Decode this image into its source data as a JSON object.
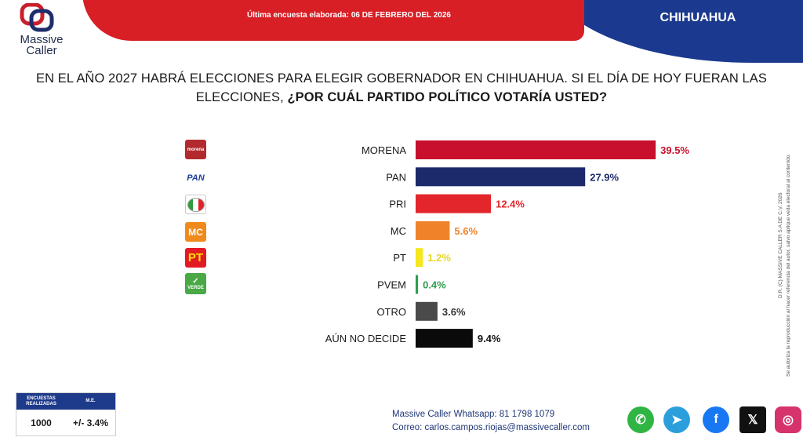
{
  "header": {
    "date_text": "Última encuesta elaborada: 06 DE FEBRERO DEL 2026",
    "region": "CHIHUAHUA",
    "logo_line1": "Massive",
    "logo_line2": "Caller",
    "red": "#d81f26",
    "blue": "#1b3a8f"
  },
  "question": {
    "part1": "EN EL AÑO 2027 HABRÁ ELECCIONES PARA ELEGIR GOBERNADOR EN CHIHUAHUA. SI EL DÍA DE HOY FUERAN LAS ELECCIONES, ",
    "part2": "¿POR CUÁL PARTIDO POLÍTICO VOTARÍA USTED?"
  },
  "party_logos": {
    "morena": "morena",
    "pan": "PAN",
    "mc": "MC",
    "pt": "PT",
    "pvem": "VERDE"
  },
  "chart_data": {
    "type": "bar",
    "orientation": "horizontal",
    "categories": [
      "MORENA",
      "PAN",
      "PRI",
      "MC",
      "PT",
      "PVEM",
      "OTRO",
      "AÚN NO DECIDE"
    ],
    "values": [
      39.5,
      27.9,
      12.4,
      5.6,
      1.2,
      0.4,
      3.6,
      9.4
    ],
    "value_labels": [
      "39.5%",
      "27.9%",
      "12.4%",
      "5.6%",
      "1.2%",
      "0.4%",
      "3.6%",
      "9.4%"
    ],
    "colors": [
      "#c8102e",
      "#1c2a6b",
      "#e3262b",
      "#f0822a",
      "#f5e61e",
      "#2e9e4e",
      "#4a4a4a",
      "#0a0a0a"
    ],
    "label_colors": [
      "#c8102e",
      "#1c2a6b",
      "#e3262b",
      "#f0822a",
      "#e6d52a",
      "#2e9e4e",
      "#333333",
      "#111111"
    ],
    "xlim": [
      0,
      40
    ],
    "grid": false
  },
  "legal": {
    "line1": "D.R. (C) MASSIVE CALLER S.A DE C.V. 2026",
    "line2": "Se autoriza la reproducción al hacer referencia del autor, salvo aplique veda electoral al contenido."
  },
  "stats": {
    "col1_header": "ENCUESTAS REALIZADAS",
    "col2_header": "M.E.",
    "col1_value": "1000",
    "col2_value": "+/- 3.4%"
  },
  "contact": {
    "line1": "Massive Caller Whatsapp: 81 1798 1079",
    "line2": "Correo: carlos.campos.riojas@massivecaller.com"
  },
  "social_icons": [
    "whatsapp-icon",
    "telegram-icon",
    "facebook-icon",
    "x-icon",
    "instagram-icon"
  ]
}
